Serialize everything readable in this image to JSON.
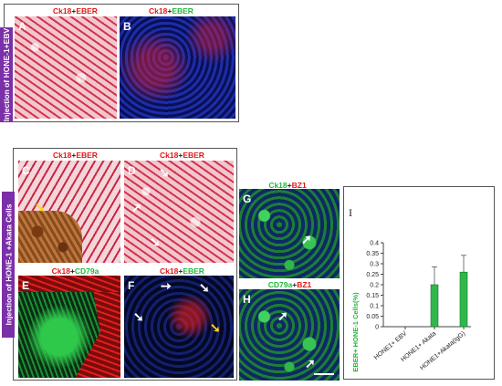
{
  "side_labels": {
    "top": "Injection of HONE-1+EBV",
    "bottom": "Injection of HONE-1 +Akata Cells"
  },
  "panels": {
    "A": {
      "letter": "A",
      "title_a": "Ck18",
      "title_plus": "+",
      "title_b": "EBER"
    },
    "B": {
      "letter": "B",
      "title_a": "Ck18",
      "title_plus": "+",
      "title_b": "EBER"
    },
    "C": {
      "letter": "C",
      "title_a": "Ck18",
      "title_plus": "+",
      "title_b": "EBER"
    },
    "D": {
      "letter": "D",
      "title_a": "Ck18",
      "title_plus": "+",
      "title_b": "EBER"
    },
    "E": {
      "letter": "E",
      "title_a": "Ck18",
      "title_plus": "+",
      "title_b": "CD79a"
    },
    "F": {
      "letter": "F",
      "title_a": "Ck18",
      "title_plus": "+",
      "title_b": "EBER"
    },
    "G": {
      "letter": "G",
      "title_a": "Ck18",
      "title_plus": "+",
      "title_b": "BZ1"
    },
    "H": {
      "letter": "H",
      "title_a": "CD79a",
      "title_plus": "+",
      "title_b": "BZ1"
    }
  },
  "chart_panel_letter": "I",
  "colors": {
    "side_bar": "#7b2fa8",
    "red_stain": "#e01818",
    "green_stain": "#1fb83a",
    "bar_fill": "#2fb84a"
  },
  "chart_data": {
    "type": "bar",
    "categories": [
      "HONE1+ EBV",
      "HONE1+ Akata",
      "HONE1+Akata(IgG)"
    ],
    "values": [
      0,
      0.2,
      0.26
    ],
    "errors": [
      0,
      0.085,
      0.08
    ],
    "ylabel": "EBER+ HONE-1 Cells(%)",
    "ylim": [
      0,
      0.4
    ],
    "yticks": [
      "0",
      "0.05",
      "0.1",
      "0.15",
      "0.2",
      "0.25",
      "0.3",
      "0.35",
      "0.4"
    ],
    "grid": false
  }
}
